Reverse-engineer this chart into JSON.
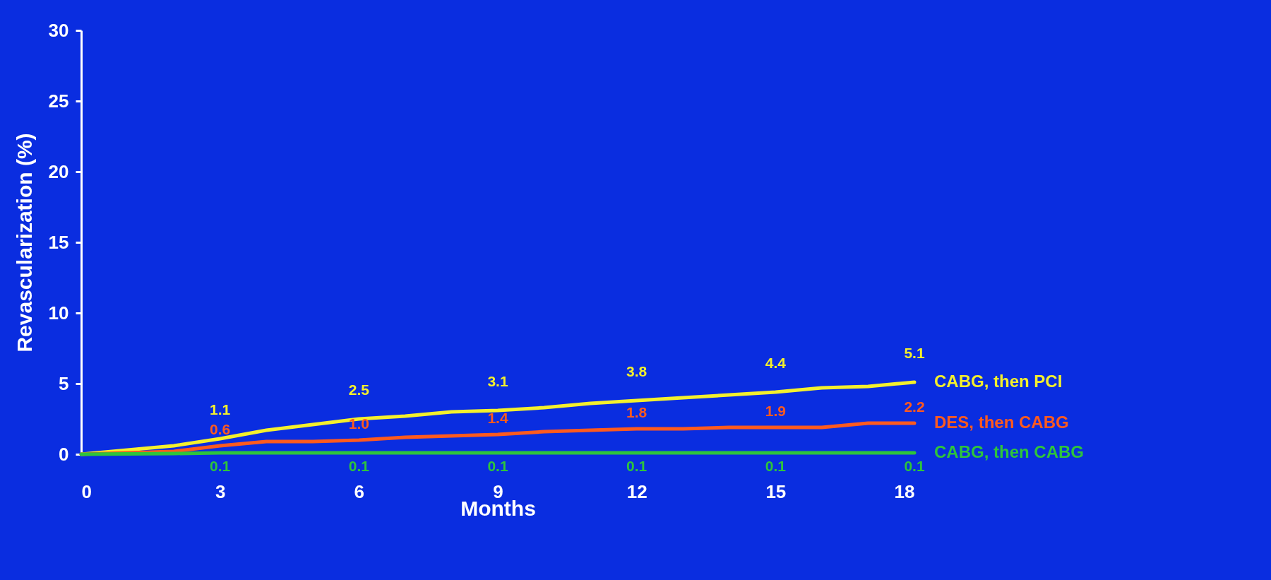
{
  "chart_data": {
    "type": "line",
    "xlabel": "Months",
    "ylabel": "Revascularization (%)",
    "xlim": [
      0,
      18
    ],
    "xticks": [
      0,
      3,
      6,
      9,
      12,
      15,
      18
    ],
    "ylim": [
      0,
      30
    ],
    "yticks": [
      0,
      5,
      10,
      15,
      20,
      25,
      30
    ],
    "series": [
      {
        "name": "CABG, then PCI",
        "color": "#f4f02c",
        "x": [
          0,
          1,
          2,
          3,
          4,
          5,
          6,
          7,
          8,
          9,
          10,
          11,
          12,
          13,
          14,
          15,
          16,
          17,
          18
        ],
        "values": [
          0,
          0.3,
          0.6,
          1.1,
          1.7,
          2.1,
          2.5,
          2.7,
          3.0,
          3.1,
          3.3,
          3.6,
          3.8,
          4.0,
          4.2,
          4.4,
          4.7,
          4.8,
          5.1
        ],
        "value_labels": [
          null,
          null,
          null,
          "1.1",
          null,
          null,
          "2.5",
          null,
          null,
          "3.1",
          null,
          null,
          "3.8",
          null,
          null,
          "4.4",
          null,
          null,
          "5.1"
        ]
      },
      {
        "name": "DES, then CABG",
        "color": "#ff5a1e",
        "x": [
          0,
          1,
          2,
          3,
          4,
          5,
          6,
          7,
          8,
          9,
          10,
          11,
          12,
          13,
          14,
          15,
          16,
          17,
          18
        ],
        "values": [
          0,
          0.1,
          0.2,
          0.6,
          0.9,
          0.9,
          1.0,
          1.2,
          1.3,
          1.4,
          1.6,
          1.7,
          1.8,
          1.8,
          1.9,
          1.9,
          1.9,
          2.2,
          2.2
        ],
        "value_labels": [
          null,
          null,
          null,
          "0.6",
          null,
          null,
          "1.0",
          null,
          null,
          "1.4",
          null,
          null,
          "1.8",
          null,
          null,
          "1.9",
          null,
          null,
          "2.2"
        ]
      },
      {
        "name": "CABG, then CABG",
        "color": "#2ec43c",
        "x": [
          0,
          2,
          3,
          6,
          9,
          12,
          15,
          18
        ],
        "values": [
          0,
          0.05,
          0.1,
          0.1,
          0.1,
          0.1,
          0.1,
          0.1
        ],
        "value_labels": [
          null,
          null,
          "0.1",
          "0.1",
          "0.1",
          "0.1",
          "0.1",
          "0.1"
        ]
      }
    ]
  }
}
